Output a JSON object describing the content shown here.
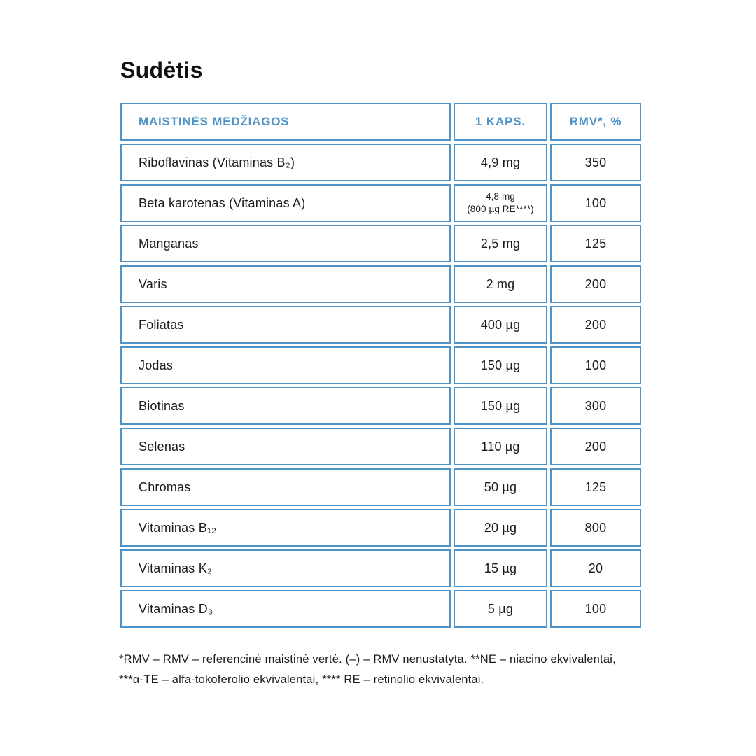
{
  "page_title": "Sudėtis",
  "colors": {
    "table_border": "#4e94c8",
    "header_text": "#4e94c8",
    "body_text": "#1b1b1b"
  },
  "table": {
    "header": [
      "MAISTINĖS MEDŽIAGOS",
      "1 KAPS.",
      "RMV*, %"
    ],
    "rows": [
      {
        "name": "Riboflavinas (Vitaminas B₂)",
        "amount": "4,9 mg",
        "rmv": "350"
      },
      {
        "name": "Beta karotenas (Vitaminas A)",
        "amount": "4,8 mg",
        "amount2": "(800 µg RE****)",
        "rmv": "100"
      },
      {
        "name": "Manganas",
        "amount": "2,5 mg",
        "rmv": "125"
      },
      {
        "name": "Varis",
        "amount": "2 mg",
        "rmv": "200"
      },
      {
        "name": "Foliatas",
        "amount": "400 µg",
        "rmv": "200"
      },
      {
        "name": "Jodas",
        "amount": "150 µg",
        "rmv": "100"
      },
      {
        "name": "Biotinas",
        "amount": "150 µg",
        "rmv": "300"
      },
      {
        "name": "Selenas",
        "amount": "110 µg",
        "rmv": "200"
      },
      {
        "name": "Chromas",
        "amount": "50 µg",
        "rmv": "125"
      },
      {
        "name": "Vitaminas B₁₂",
        "amount": "20 µg",
        "rmv": "800"
      },
      {
        "name": "Vitaminas K₂",
        "amount": "15 µg",
        "rmv": "20"
      },
      {
        "name": "Vitaminas D₃",
        "amount": "5 µg",
        "rmv": "100"
      }
    ]
  },
  "footnote_lines": [
    "*RMV – RMV – referencinė maistinė vertė. (–) – RMV nenustatyta. **NE – niacino ekvivalentai,",
    "***α-TE – alfa-tokoferolio ekvivalentai, **** RE – retinolio ekvivalentai."
  ]
}
